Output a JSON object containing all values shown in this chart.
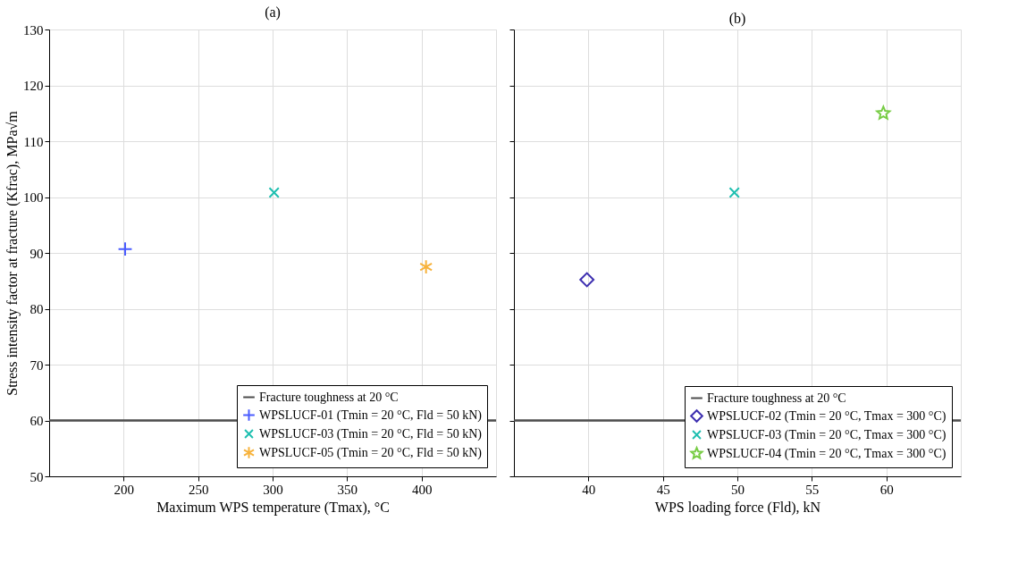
{
  "chart_data": [
    {
      "type": "scatter",
      "title": "(a)",
      "xlabel": "Maximum WPS temperature (Tmax), °C",
      "ylabel": "Stress intensity factor at fracture (Kfrac), MPa√m",
      "xlim": [
        150,
        450
      ],
      "xticks": [
        200,
        250,
        300,
        350,
        400
      ],
      "ylim": [
        50,
        130
      ],
      "yticks": [
        50,
        60,
        70,
        80,
        90,
        100,
        110,
        120,
        130
      ],
      "grid": true,
      "legend": "bottom right",
      "ref_lines": [
        {
          "axis": "y",
          "value": 60,
          "label": "Fracture toughness at 20 °C",
          "color": "#4d4d4d"
        }
      ],
      "series": [
        {
          "name": "WPSLUCF-01 (Tmin = 20 °C, Fld = 50 kN)",
          "color": "#4a5cff",
          "marker": "plus",
          "x": [
            201
          ],
          "values": [
            90.7
          ]
        },
        {
          "name": "WPSLUCF-03 (Tmin = 20 °C, Fld = 50 kN)",
          "color": "#1fbfb0",
          "marker": "x",
          "x": [
            301
          ],
          "values": [
            100.8
          ]
        },
        {
          "name": "WPSLUCF-05 (Tmin = 20 °C, Fld = 50 kN)",
          "color": "#f7b23b",
          "marker": "cross",
          "x": [
            403
          ],
          "values": [
            87.5
          ]
        }
      ]
    },
    {
      "type": "scatter",
      "title": "(b)",
      "xlabel": "WPS loading force (Fld), kN",
      "xlim": [
        35,
        65
      ],
      "xticks": [
        40,
        45,
        50,
        55,
        60
      ],
      "ylim": [
        50,
        130
      ],
      "yticks": [
        50,
        60,
        70,
        80,
        90,
        100,
        110,
        120,
        130
      ],
      "grid": true,
      "legend": "bottom right",
      "tick_labels": "x",
      "ref_lines": [
        {
          "axis": "y",
          "value": 60,
          "label": "Fracture toughness at 20 °C",
          "color": "#4d4d4d"
        }
      ],
      "series": [
        {
          "name": "WPSLUCF-02 (Tmin = 20 °C, Tmax = 300 °C)",
          "color": "#3d2fb0",
          "marker": "diamond",
          "x": [
            39.9
          ],
          "values": [
            85.2
          ]
        },
        {
          "name": "WPSLUCF-03 (Tmin = 20 °C, Tmax = 300 °C)",
          "color": "#1fbfb0",
          "marker": "x",
          "x": [
            49.8
          ],
          "values": [
            100.8
          ]
        },
        {
          "name": "WPSLUCF-04 (Tmin = 20 °C, Tmax = 300 °C)",
          "color": "#77cc44",
          "marker": "star",
          "x": [
            59.8
          ],
          "values": [
            115
          ]
        }
      ]
    }
  ]
}
